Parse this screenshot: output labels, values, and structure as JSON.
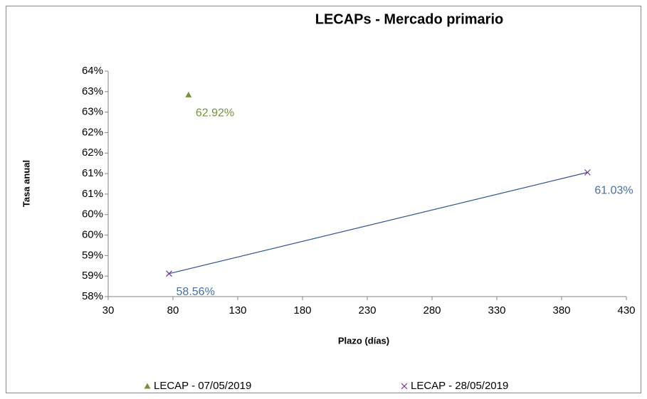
{
  "chart_data": {
    "type": "scatter",
    "title": "LECAPs - Mercado primario",
    "x_label": "Plazo (días)",
    "y_label": "Tasa anual",
    "xlim": [
      30,
      430
    ],
    "xticks": [
      30,
      80,
      130,
      180,
      230,
      280,
      330,
      380,
      430
    ],
    "ylim": [
      58,
      63.5
    ],
    "yticks": [
      {
        "value": 58,
        "label": "58%"
      },
      {
        "value": 58.5,
        "label": "59%"
      },
      {
        "value": 59,
        "label": "59%"
      },
      {
        "value": 59.5,
        "label": "60%"
      },
      {
        "value": 60,
        "label": "60%"
      },
      {
        "value": 60.5,
        "label": "61%"
      },
      {
        "value": 61,
        "label": "61%"
      },
      {
        "value": 61.5,
        "label": "62%"
      },
      {
        "value": 62,
        "label": "62%"
      },
      {
        "value": 62.5,
        "label": "63%"
      },
      {
        "value": 63,
        "label": "63%"
      },
      {
        "value": 63.5,
        "label": "64%"
      }
    ],
    "grid": false,
    "legend": "bottom",
    "series": [
      {
        "name": "LECAP - 07/05/2019",
        "color": "#77933c",
        "marker": "triangle",
        "line": false,
        "label_color": "#77933c",
        "x": [
          92
        ],
        "values": [
          62.92
        ],
        "value_labels": [
          "62.92%"
        ]
      },
      {
        "name": "LECAP - 28/05/2019",
        "color": "#7030a0",
        "marker": "x",
        "line": true,
        "line_color": "#2f5597",
        "label_color": "#4a6fa5",
        "x": [
          77,
          400
        ],
        "values": [
          58.56,
          61.03
        ],
        "value_labels": [
          "58.56%",
          "61.03%"
        ]
      }
    ]
  }
}
